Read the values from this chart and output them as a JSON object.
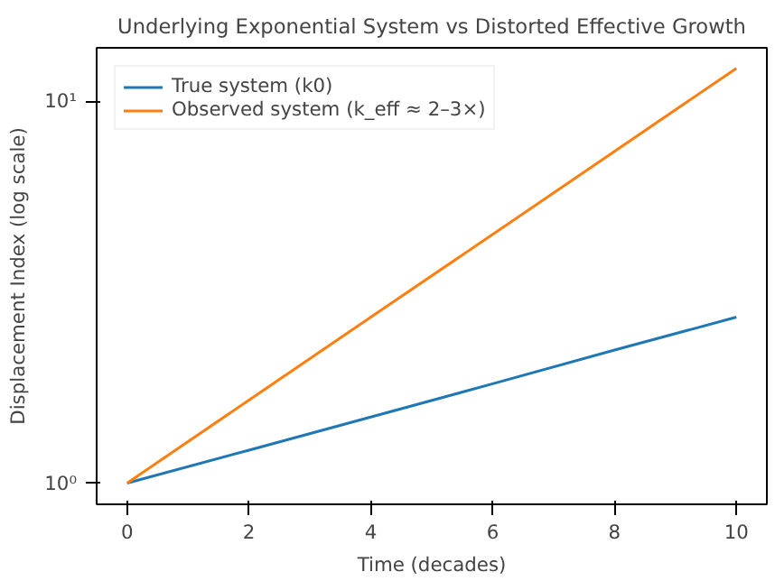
{
  "chart_data": {
    "type": "line",
    "title": "Underlying Exponential System vs Distorted Effective Growth",
    "xlabel": "Time (decades)",
    "ylabel": "Displacement Index (log scale)",
    "x": [
      0,
      2,
      4,
      6,
      8,
      10
    ],
    "series": [
      {
        "name": "True system (k0)",
        "color": "#1f77b4",
        "values": [
          1,
          1.22,
          1.49,
          1.82,
          2.23,
          2.72
        ]
      },
      {
        "name": "Observed system (k_eff ≈ 2–3×)",
        "color": "#ff7f0e",
        "values": [
          1,
          1.65,
          2.72,
          4.48,
          7.39,
          12.2
        ]
      }
    ],
    "log": "y",
    "xlim": [
      -0.5,
      10.5
    ],
    "ylim": [
      0.88,
      13.8
    ],
    "xticks": [
      0,
      2,
      4,
      6,
      8,
      10
    ],
    "yticks": [
      {
        "value": 1,
        "label": "10⁰"
      },
      {
        "value": 10,
        "label": "10¹"
      }
    ],
    "legend": "top left",
    "grid": false,
    "marker": "none",
    "line_style": "solid"
  }
}
